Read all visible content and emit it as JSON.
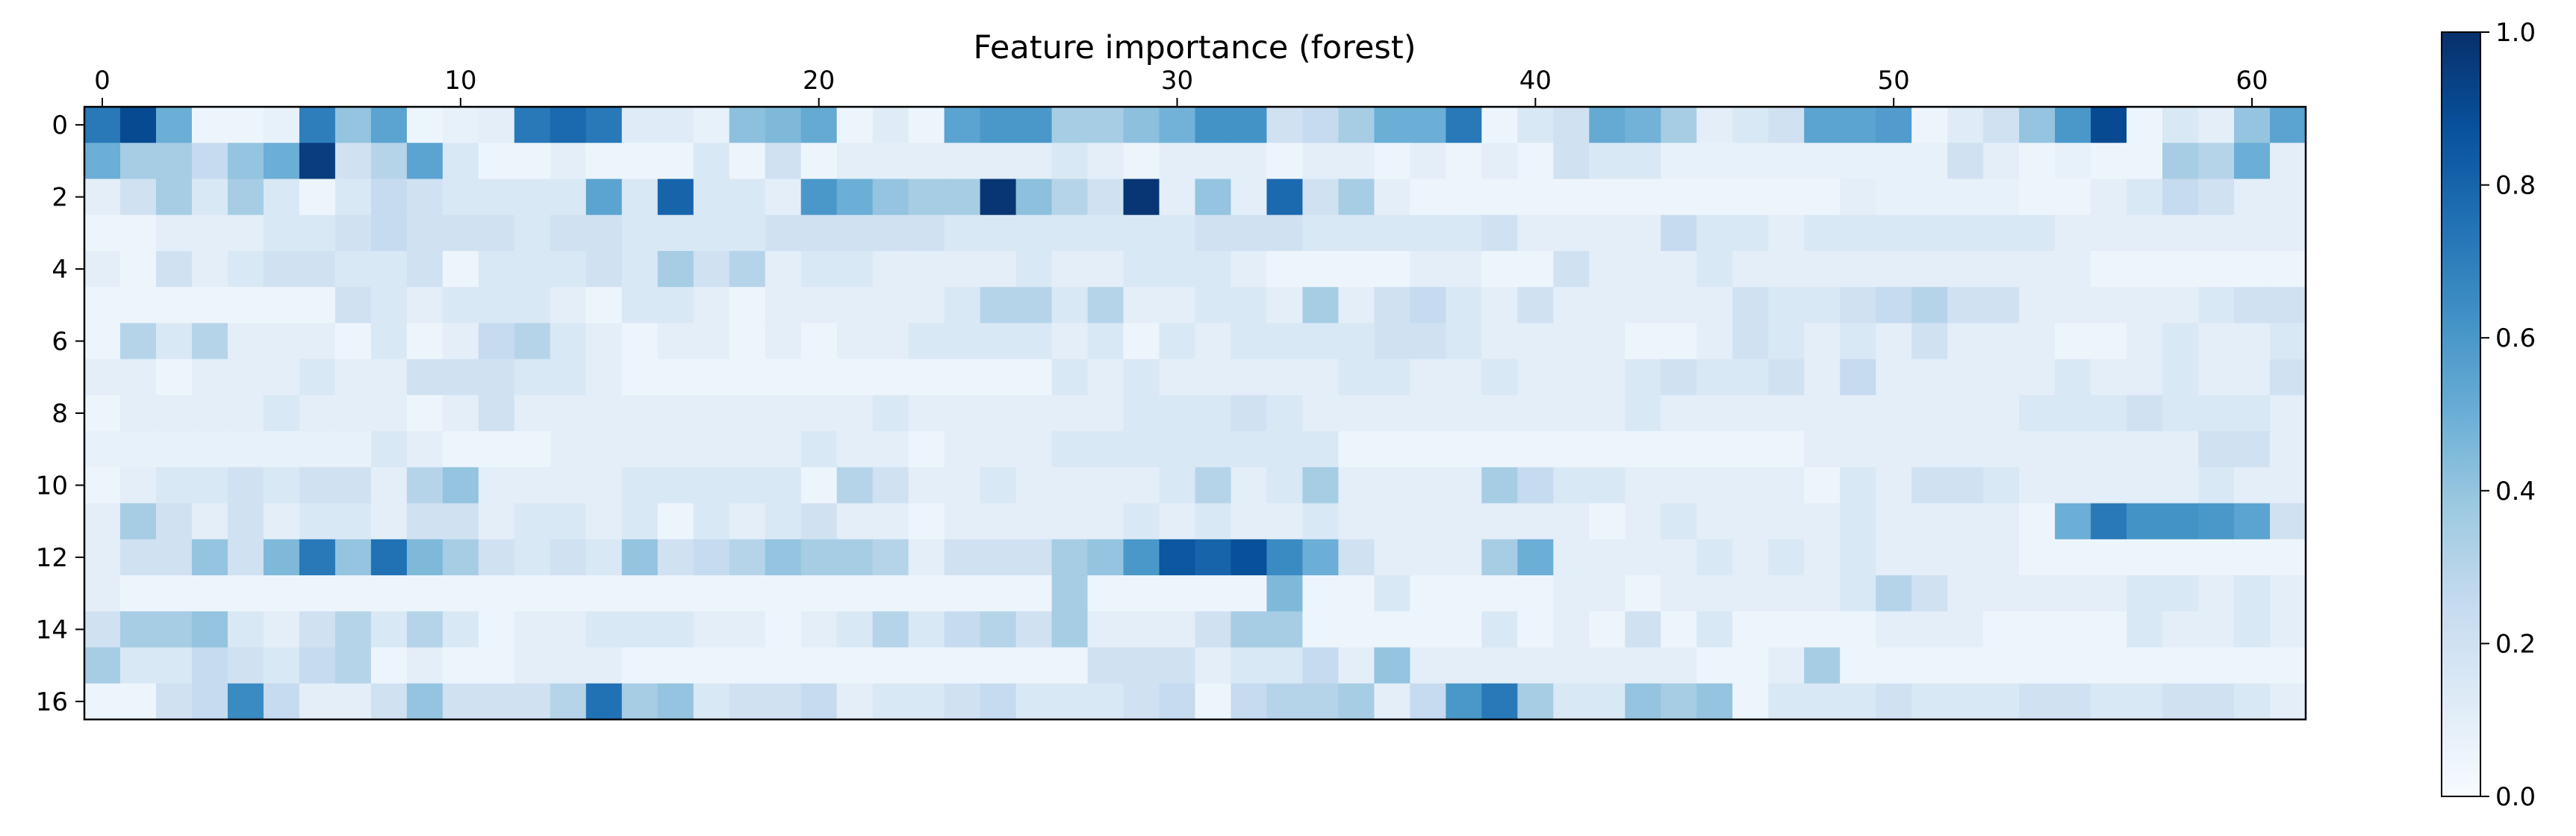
{
  "chart_data": {
    "type": "heatmap",
    "title": "Feature importance (forest)",
    "colormap": "Blues",
    "n_rows": 17,
    "n_cols": 62,
    "x_ticks": [
      0,
      10,
      20,
      30,
      40,
      50,
      60
    ],
    "x_tick_labels": [
      "0",
      "10",
      "20",
      "30",
      "40",
      "50",
      "60"
    ],
    "x_tick_position": "top",
    "y_ticks": [
      0,
      2,
      4,
      6,
      8,
      10,
      12,
      14,
      16
    ],
    "y_tick_labels": [
      "0",
      "2",
      "4",
      "6",
      "8",
      "10",
      "12",
      "14",
      "16"
    ],
    "colorbar": {
      "range": [
        0.0,
        1.0
      ],
      "ticks": [
        0.0,
        0.2,
        0.4,
        0.6,
        0.8,
        1.0
      ],
      "tick_labels": [
        "0.0",
        "0.2",
        "0.4",
        "0.6",
        "0.8",
        "1.0"
      ],
      "placement": "right"
    },
    "values": [
      [
        0.72,
        0.9,
        0.5,
        0.05,
        0.05,
        0.08,
        0.7,
        0.4,
        0.55,
        0.05,
        0.08,
        0.1,
        0.72,
        0.78,
        0.72,
        0.12,
        0.12,
        0.08,
        0.42,
        0.45,
        0.52,
        0.05,
        0.12,
        0.05,
        0.55,
        0.6,
        0.6,
        0.35,
        0.35,
        0.42,
        0.48,
        0.62,
        0.62,
        0.2,
        0.25,
        0.35,
        0.5,
        0.5,
        0.72,
        0.05,
        0.15,
        0.2,
        0.52,
        0.48,
        0.35,
        0.1,
        0.15,
        0.2,
        0.55,
        0.55,
        0.58,
        0.05,
        0.12,
        0.2,
        0.4,
        0.6,
        0.9,
        0.05,
        0.15,
        0.1,
        0.4,
        0.55
      ],
      [
        0.5,
        0.35,
        0.35,
        0.25,
        0.4,
        0.5,
        0.95,
        0.2,
        0.3,
        0.55,
        0.15,
        0.05,
        0.05,
        0.1,
        0.05,
        0.05,
        0.05,
        0.15,
        0.05,
        0.2,
        0.05,
        0.1,
        0.1,
        0.1,
        0.1,
        0.1,
        0.1,
        0.15,
        0.1,
        0.05,
        0.1,
        0.1,
        0.1,
        0.05,
        0.1,
        0.1,
        0.05,
        0.1,
        0.05,
        0.1,
        0.05,
        0.2,
        0.15,
        0.15,
        0.08,
        0.08,
        0.08,
        0.08,
        0.08,
        0.08,
        0.08,
        0.08,
        0.2,
        0.1,
        0.05,
        0.08,
        0.05,
        0.05,
        0.35,
        0.3,
        0.5,
        0.1
      ],
      [
        0.1,
        0.2,
        0.35,
        0.15,
        0.35,
        0.15,
        0.05,
        0.15,
        0.25,
        0.2,
        0.15,
        0.15,
        0.15,
        0.15,
        0.55,
        0.15,
        0.8,
        0.15,
        0.15,
        0.1,
        0.6,
        0.5,
        0.4,
        0.35,
        0.35,
        0.98,
        0.42,
        0.3,
        0.2,
        0.98,
        0.1,
        0.4,
        0.1,
        0.78,
        0.2,
        0.35,
        0.1,
        0.05,
        0.05,
        0.05,
        0.05,
        0.05,
        0.05,
        0.05,
        0.05,
        0.05,
        0.05,
        0.05,
        0.05,
        0.1,
        0.08,
        0.08,
        0.08,
        0.08,
        0.05,
        0.05,
        0.1,
        0.15,
        0.25,
        0.2,
        0.1,
        0.1
      ],
      [
        0.05,
        0.05,
        0.1,
        0.1,
        0.1,
        0.15,
        0.15,
        0.2,
        0.25,
        0.2,
        0.2,
        0.2,
        0.15,
        0.2,
        0.2,
        0.15,
        0.15,
        0.15,
        0.15,
        0.2,
        0.2,
        0.2,
        0.2,
        0.2,
        0.15,
        0.15,
        0.15,
        0.15,
        0.15,
        0.15,
        0.15,
        0.2,
        0.2,
        0.2,
        0.15,
        0.15,
        0.15,
        0.15,
        0.15,
        0.2,
        0.1,
        0.1,
        0.1,
        0.1,
        0.25,
        0.15,
        0.15,
        0.1,
        0.15,
        0.15,
        0.15,
        0.15,
        0.15,
        0.15,
        0.15,
        0.1,
        0.1,
        0.1,
        0.1,
        0.1,
        0.1,
        0.1
      ],
      [
        0.1,
        0.05,
        0.2,
        0.1,
        0.15,
        0.2,
        0.2,
        0.15,
        0.15,
        0.2,
        0.05,
        0.15,
        0.15,
        0.15,
        0.2,
        0.15,
        0.35,
        0.2,
        0.3,
        0.1,
        0.15,
        0.15,
        0.1,
        0.1,
        0.1,
        0.1,
        0.15,
        0.1,
        0.1,
        0.15,
        0.15,
        0.15,
        0.1,
        0.05,
        0.05,
        0.05,
        0.05,
        0.1,
        0.1,
        0.05,
        0.05,
        0.2,
        0.1,
        0.1,
        0.1,
        0.15,
        0.1,
        0.1,
        0.1,
        0.1,
        0.1,
        0.1,
        0.1,
        0.1,
        0.1,
        0.1,
        0.05,
        0.05,
        0.05,
        0.05,
        0.05,
        0.05
      ],
      [
        0.05,
        0.05,
        0.05,
        0.05,
        0.05,
        0.05,
        0.05,
        0.2,
        0.15,
        0.1,
        0.15,
        0.15,
        0.15,
        0.1,
        0.05,
        0.15,
        0.15,
        0.1,
        0.05,
        0.1,
        0.1,
        0.1,
        0.1,
        0.1,
        0.15,
        0.3,
        0.3,
        0.15,
        0.3,
        0.1,
        0.1,
        0.15,
        0.15,
        0.1,
        0.35,
        0.1,
        0.2,
        0.25,
        0.15,
        0.1,
        0.2,
        0.1,
        0.1,
        0.1,
        0.1,
        0.1,
        0.2,
        0.15,
        0.15,
        0.2,
        0.25,
        0.3,
        0.2,
        0.2,
        0.1,
        0.1,
        0.1,
        0.1,
        0.1,
        0.15,
        0.2,
        0.2
      ],
      [
        0.05,
        0.3,
        0.15,
        0.3,
        0.1,
        0.1,
        0.1,
        0.05,
        0.15,
        0.05,
        0.1,
        0.25,
        0.3,
        0.15,
        0.1,
        0.05,
        0.1,
        0.1,
        0.05,
        0.1,
        0.05,
        0.1,
        0.1,
        0.15,
        0.15,
        0.15,
        0.15,
        0.1,
        0.15,
        0.05,
        0.15,
        0.1,
        0.15,
        0.15,
        0.15,
        0.15,
        0.2,
        0.2,
        0.15,
        0.1,
        0.1,
        0.1,
        0.1,
        0.05,
        0.05,
        0.1,
        0.2,
        0.15,
        0.1,
        0.15,
        0.1,
        0.2,
        0.1,
        0.1,
        0.1,
        0.05,
        0.05,
        0.1,
        0.15,
        0.1,
        0.1,
        0.15
      ],
      [
        0.1,
        0.1,
        0.05,
        0.1,
        0.1,
        0.1,
        0.15,
        0.1,
        0.1,
        0.2,
        0.2,
        0.2,
        0.15,
        0.15,
        0.1,
        0.05,
        0.05,
        0.05,
        0.05,
        0.05,
        0.05,
        0.05,
        0.05,
        0.05,
        0.05,
        0.05,
        0.05,
        0.15,
        0.1,
        0.15,
        0.1,
        0.1,
        0.1,
        0.1,
        0.1,
        0.15,
        0.15,
        0.1,
        0.1,
        0.15,
        0.1,
        0.1,
        0.1,
        0.15,
        0.2,
        0.15,
        0.15,
        0.2,
        0.1,
        0.25,
        0.1,
        0.1,
        0.1,
        0.1,
        0.1,
        0.15,
        0.1,
        0.1,
        0.15,
        0.1,
        0.1,
        0.2
      ],
      [
        0.05,
        0.1,
        0.1,
        0.1,
        0.1,
        0.15,
        0.1,
        0.1,
        0.1,
        0.05,
        0.1,
        0.2,
        0.1,
        0.1,
        0.1,
        0.1,
        0.1,
        0.1,
        0.1,
        0.1,
        0.1,
        0.1,
        0.15,
        0.1,
        0.1,
        0.1,
        0.1,
        0.1,
        0.1,
        0.15,
        0.15,
        0.15,
        0.2,
        0.15,
        0.1,
        0.1,
        0.1,
        0.1,
        0.1,
        0.1,
        0.1,
        0.1,
        0.1,
        0.15,
        0.1,
        0.1,
        0.1,
        0.1,
        0.1,
        0.1,
        0.1,
        0.1,
        0.1,
        0.1,
        0.15,
        0.15,
        0.15,
        0.2,
        0.15,
        0.15,
        0.15,
        0.1
      ],
      [
        0.08,
        0.08,
        0.08,
        0.08,
        0.08,
        0.08,
        0.08,
        0.08,
        0.15,
        0.1,
        0.05,
        0.05,
        0.05,
        0.1,
        0.1,
        0.1,
        0.1,
        0.1,
        0.1,
        0.1,
        0.15,
        0.1,
        0.1,
        0.05,
        0.1,
        0.1,
        0.1,
        0.15,
        0.15,
        0.15,
        0.15,
        0.15,
        0.15,
        0.15,
        0.15,
        0.05,
        0.05,
        0.05,
        0.05,
        0.05,
        0.05,
        0.05,
        0.05,
        0.05,
        0.05,
        0.05,
        0.05,
        0.05,
        0.1,
        0.1,
        0.1,
        0.1,
        0.1,
        0.1,
        0.1,
        0.1,
        0.1,
        0.1,
        0.1,
        0.2,
        0.2,
        0.1
      ],
      [
        0.05,
        0.1,
        0.15,
        0.15,
        0.2,
        0.15,
        0.2,
        0.2,
        0.1,
        0.3,
        0.4,
        0.1,
        0.1,
        0.1,
        0.1,
        0.15,
        0.15,
        0.15,
        0.15,
        0.15,
        0.05,
        0.3,
        0.2,
        0.1,
        0.1,
        0.15,
        0.1,
        0.1,
        0.1,
        0.1,
        0.15,
        0.3,
        0.1,
        0.15,
        0.35,
        0.1,
        0.1,
        0.1,
        0.1,
        0.35,
        0.25,
        0.15,
        0.15,
        0.1,
        0.1,
        0.1,
        0.1,
        0.1,
        0.05,
        0.15,
        0.1,
        0.2,
        0.2,
        0.15,
        0.1,
        0.1,
        0.1,
        0.1,
        0.1,
        0.15,
        0.1,
        0.1
      ],
      [
        0.1,
        0.35,
        0.2,
        0.1,
        0.2,
        0.1,
        0.15,
        0.15,
        0.1,
        0.2,
        0.2,
        0.1,
        0.15,
        0.15,
        0.1,
        0.15,
        0.05,
        0.15,
        0.1,
        0.15,
        0.2,
        0.1,
        0.1,
        0.05,
        0.1,
        0.1,
        0.1,
        0.1,
        0.1,
        0.15,
        0.1,
        0.15,
        0.1,
        0.1,
        0.15,
        0.1,
        0.1,
        0.1,
        0.1,
        0.1,
        0.1,
        0.1,
        0.05,
        0.1,
        0.15,
        0.1,
        0.1,
        0.1,
        0.1,
        0.15,
        0.1,
        0.1,
        0.1,
        0.1,
        0.05,
        0.5,
        0.72,
        0.62,
        0.62,
        0.6,
        0.55,
        0.2
      ],
      [
        0.1,
        0.2,
        0.2,
        0.4,
        0.2,
        0.45,
        0.72,
        0.4,
        0.75,
        0.45,
        0.35,
        0.2,
        0.15,
        0.2,
        0.15,
        0.4,
        0.2,
        0.25,
        0.3,
        0.4,
        0.35,
        0.35,
        0.3,
        0.1,
        0.2,
        0.2,
        0.2,
        0.35,
        0.4,
        0.6,
        0.85,
        0.8,
        0.88,
        0.65,
        0.5,
        0.2,
        0.1,
        0.1,
        0.1,
        0.35,
        0.5,
        0.1,
        0.1,
        0.1,
        0.1,
        0.15,
        0.1,
        0.15,
        0.1,
        0.15,
        0.1,
        0.1,
        0.1,
        0.1,
        0.05,
        0.05,
        0.05,
        0.05,
        0.05,
        0.05,
        0.05,
        0.05
      ],
      [
        0.1,
        0.05,
        0.05,
        0.05,
        0.05,
        0.05,
        0.05,
        0.05,
        0.05,
        0.05,
        0.05,
        0.05,
        0.05,
        0.05,
        0.05,
        0.05,
        0.05,
        0.05,
        0.05,
        0.05,
        0.05,
        0.05,
        0.05,
        0.05,
        0.05,
        0.05,
        0.05,
        0.35,
        0.05,
        0.05,
        0.05,
        0.05,
        0.05,
        0.45,
        0.05,
        0.05,
        0.15,
        0.05,
        0.05,
        0.05,
        0.05,
        0.1,
        0.1,
        0.05,
        0.1,
        0.1,
        0.1,
        0.1,
        0.1,
        0.15,
        0.3,
        0.2,
        0.1,
        0.1,
        0.1,
        0.1,
        0.1,
        0.15,
        0.15,
        0.1,
        0.15,
        0.1
      ],
      [
        0.2,
        0.35,
        0.35,
        0.4,
        0.15,
        0.1,
        0.2,
        0.3,
        0.15,
        0.3,
        0.15,
        0.05,
        0.1,
        0.1,
        0.15,
        0.15,
        0.15,
        0.1,
        0.1,
        0.05,
        0.1,
        0.15,
        0.3,
        0.15,
        0.25,
        0.3,
        0.2,
        0.35,
        0.1,
        0.1,
        0.1,
        0.2,
        0.35,
        0.35,
        0.05,
        0.05,
        0.05,
        0.05,
        0.05,
        0.15,
        0.05,
        0.1,
        0.05,
        0.2,
        0.05,
        0.15,
        0.05,
        0.05,
        0.05,
        0.05,
        0.1,
        0.1,
        0.1,
        0.05,
        0.05,
        0.05,
        0.05,
        0.15,
        0.1,
        0.1,
        0.15,
        0.1
      ],
      [
        0.35,
        0.15,
        0.15,
        0.25,
        0.2,
        0.15,
        0.25,
        0.3,
        0.05,
        0.1,
        0.05,
        0.05,
        0.1,
        0.1,
        0.1,
        0.05,
        0.05,
        0.05,
        0.05,
        0.05,
        0.05,
        0.05,
        0.05,
        0.05,
        0.05,
        0.05,
        0.05,
        0.05,
        0.2,
        0.2,
        0.2,
        0.1,
        0.15,
        0.15,
        0.25,
        0.1,
        0.4,
        0.1,
        0.1,
        0.1,
        0.1,
        0.1,
        0.1,
        0.1,
        0.1,
        0.05,
        0.05,
        0.1,
        0.35,
        0.05,
        0.05,
        0.05,
        0.05,
        0.05,
        0.05,
        0.05,
        0.05,
        0.05,
        0.05,
        0.05,
        0.05,
        0.05
      ],
      [
        0.05,
        0.05,
        0.2,
        0.25,
        0.65,
        0.25,
        0.1,
        0.1,
        0.2,
        0.4,
        0.2,
        0.2,
        0.2,
        0.3,
        0.75,
        0.35,
        0.4,
        0.15,
        0.2,
        0.2,
        0.25,
        0.1,
        0.15,
        0.15,
        0.2,
        0.25,
        0.15,
        0.15,
        0.15,
        0.2,
        0.25,
        0.05,
        0.25,
        0.3,
        0.3,
        0.35,
        0.1,
        0.25,
        0.6,
        0.72,
        0.35,
        0.15,
        0.15,
        0.4,
        0.35,
        0.4,
        0.05,
        0.15,
        0.15,
        0.15,
        0.2,
        0.15,
        0.15,
        0.15,
        0.2,
        0.2,
        0.15,
        0.15,
        0.2,
        0.2,
        0.15,
        0.1
      ]
    ]
  }
}
